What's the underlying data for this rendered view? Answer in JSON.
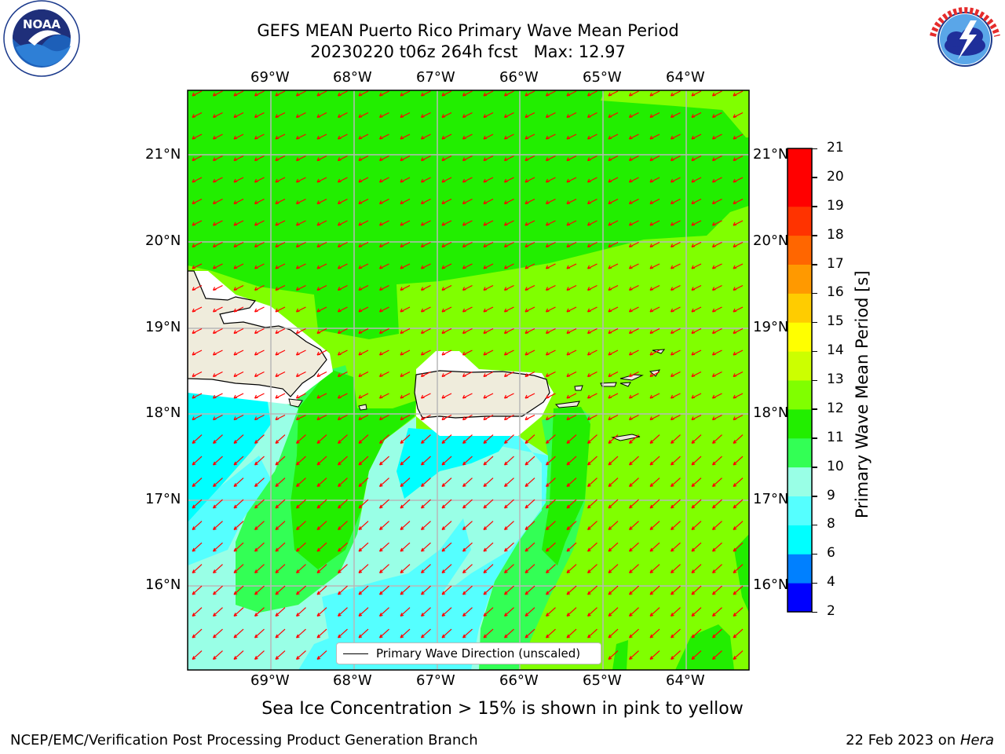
{
  "title": {
    "line1": "GEFS MEAN Puerto Rico Primary Wave Mean Period",
    "line2": "20230220 t06z 264h fcst   Max: 12.97"
  },
  "logos": {
    "left": {
      "text": "NOAA",
      "icon": "noaa-logo",
      "ring": "NATIONAL OCEANIC AND ATMOSPHERIC ADMINISTRATION · U.S. DEPARTMENT OF COMMERCE"
    },
    "right": {
      "icon": "nws-logo",
      "ring": "NATIONAL WEATHER SERVICE"
    }
  },
  "map": {
    "lon_ticks": [
      "69°W",
      "68°W",
      "67°W",
      "66°W",
      "65°W",
      "64°W"
    ],
    "lat_ticks": [
      "21°N",
      "20°N",
      "19°N",
      "18°N",
      "17°N",
      "16°N"
    ],
    "extent": {
      "lon": [
        -70.0,
        -63.25
      ],
      "lat": [
        15.0,
        21.75
      ]
    },
    "grid": true,
    "land_color": "#efecdc",
    "arrow_color": "#ff0000",
    "legend_label": "Primary Wave Direction (unscaled)",
    "legend_placement": "lower-center"
  },
  "colorbar": {
    "title": "Primary Wave Mean Period [s]",
    "levels": [
      "2",
      "4",
      "6",
      "8",
      "9",
      "10",
      "11",
      "12",
      "13",
      "14",
      "15",
      "16",
      "17",
      "18",
      "19",
      "20",
      "21"
    ],
    "colors": [
      "#0000ff",
      "#0080ff",
      "#00ffff",
      "#55ffff",
      "#99ffe6",
      "#33ff55",
      "#22ee00",
      "#80ff00",
      "#ccff00",
      "#ffff00",
      "#ffcc00",
      "#ff9900",
      "#ff6600",
      "#ff3300",
      "#ff0000",
      "#ff0000"
    ]
  },
  "note": "Sea Ice Concentration > 15% is shown in pink to yellow",
  "footer": {
    "left": "NCEP/EMC/Verification Post Processing Product Generation Branch",
    "date": "22 Feb 2023 on ",
    "machine": "Hera"
  }
}
